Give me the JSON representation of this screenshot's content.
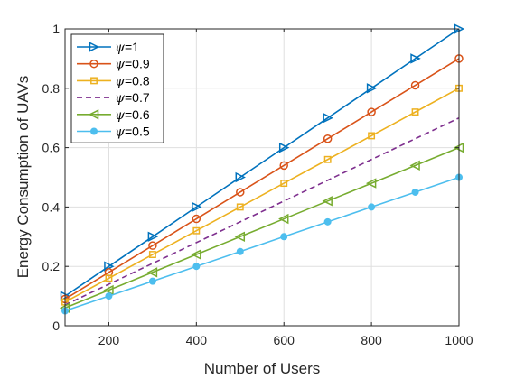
{
  "chart_data": {
    "type": "line",
    "xlabel": "Number of Users",
    "ylabel": "Energy Consumption of UAVs",
    "xlim": [
      100,
      1000
    ],
    "ylim": [
      0,
      1
    ],
    "xticks": [
      200,
      400,
      600,
      800,
      1000
    ],
    "yticks": [
      0,
      0.2,
      0.4,
      0.6,
      0.8,
      1
    ],
    "grid": true,
    "legend_position": "top-left",
    "x": [
      100,
      200,
      300,
      400,
      500,
      600,
      700,
      800,
      900,
      1000
    ],
    "series": [
      {
        "name": "ψ=1",
        "color": "#0072BD",
        "marker": "triangle-right",
        "dashed": false,
        "values": [
          0.1,
          0.2,
          0.3,
          0.4,
          0.5,
          0.6,
          0.7,
          0.8,
          0.9,
          1.0
        ]
      },
      {
        "name": "ψ=0.9",
        "color": "#D95319",
        "marker": "circle",
        "dashed": false,
        "values": [
          0.09,
          0.18,
          0.27,
          0.36,
          0.45,
          0.54,
          0.63,
          0.72,
          0.81,
          0.9
        ]
      },
      {
        "name": "ψ=0.8",
        "color": "#EDB120",
        "marker": "square",
        "dashed": false,
        "values": [
          0.08,
          0.16,
          0.24,
          0.32,
          0.4,
          0.48,
          0.56,
          0.64,
          0.72,
          0.8
        ]
      },
      {
        "name": "ψ=0.7",
        "color": "#7E2F8E",
        "marker": "none",
        "dashed": true,
        "values": [
          0.07,
          0.14,
          0.21,
          0.28,
          0.35,
          0.42,
          0.49,
          0.56,
          0.63,
          0.7
        ]
      },
      {
        "name": "ψ=0.6",
        "color": "#77AC30",
        "marker": "triangle-left",
        "dashed": false,
        "values": [
          0.06,
          0.12,
          0.18,
          0.24,
          0.3,
          0.36,
          0.42,
          0.48,
          0.54,
          0.6
        ]
      },
      {
        "name": "ψ=0.5",
        "color": "#4DBEEE",
        "marker": "dot",
        "dashed": false,
        "values": [
          0.05,
          0.1,
          0.15,
          0.2,
          0.25,
          0.3,
          0.35,
          0.4,
          0.45,
          0.5
        ]
      }
    ]
  }
}
